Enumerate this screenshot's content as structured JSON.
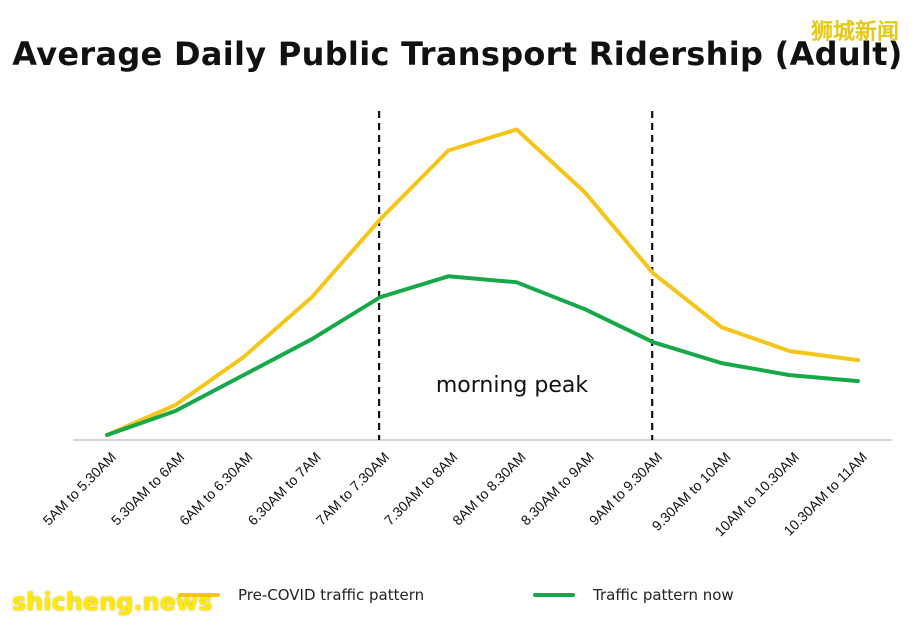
{
  "chart_data": {
    "type": "line",
    "title": "Average Daily Public Transport Ridership (Adult)",
    "categories": [
      "5AM to 5.30AM",
      "5.30AM to 6AM",
      "6AM to 6.30AM",
      "6.30AM to 7AM",
      "7AM to 7.30AM",
      "7.30AM to 8AM",
      "8AM to 8.30AM",
      "8.30AM to 9AM",
      "9AM to 9.30AM",
      "9.30AM to 10AM",
      "10AM to 10.30AM",
      "10.30AM to 11AM"
    ],
    "series": [
      {
        "name": "Pre-COVID traffic pattern",
        "color": "#f5c518",
        "values": [
          1,
          11,
          27,
          47,
          73,
          96,
          103,
          82,
          55,
          37,
          29,
          26
        ]
      },
      {
        "name": "Traffic pattern now",
        "color": "#17a84a",
        "values": [
          1,
          9,
          21,
          33,
          47,
          54,
          52,
          43,
          32,
          25,
          21,
          19
        ]
      }
    ],
    "ylim": [
      0,
      110
    ],
    "annotations": [
      {
        "text": "morning peak"
      }
    ],
    "grid": false,
    "legend_position": "bottom"
  },
  "watermarks": {
    "top": "狮城新闻",
    "bottom": "shicheng.news"
  }
}
